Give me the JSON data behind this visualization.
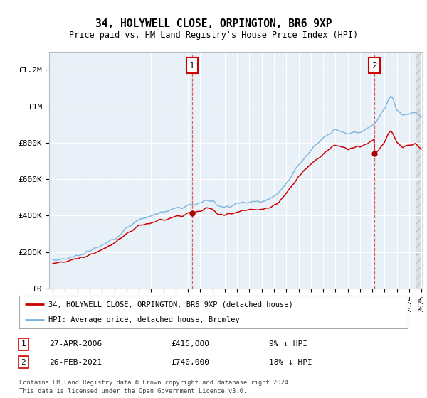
{
  "title": "34, HOLYWELL CLOSE, ORPINGTON, BR6 9XP",
  "subtitle": "Price paid vs. HM Land Registry's House Price Index (HPI)",
  "background_color": "#e8f0f8",
  "plot_bg_color": "#e8f0f8",
  "hpi_color": "#7ab3d9",
  "price_color": "#cc0000",
  "marker_color": "#aa0000",
  "transaction1_x": 2006.32,
  "transaction1_y": 415000,
  "transaction2_x": 2021.15,
  "transaction2_y": 740000,
  "legend_label1": "34, HOLYWELL CLOSE, ORPINGTON, BR6 9XP (detached house)",
  "legend_label2": "HPI: Average price, detached house, Bromley",
  "annotation1_date": "27-APR-2006",
  "annotation1_price": "£415,000",
  "annotation1_hpi": "9% ↓ HPI",
  "annotation2_date": "26-FEB-2021",
  "annotation2_price": "£740,000",
  "annotation2_hpi": "18% ↓ HPI",
  "footer": "Contains HM Land Registry data © Crown copyright and database right 2024.\nThis data is licensed under the Open Government Licence v3.0.",
  "xmin": 1995,
  "xmax": 2025,
  "ylim": [
    0,
    1300000
  ],
  "yticks": [
    0,
    200000,
    400000,
    600000,
    800000,
    1000000,
    1200000
  ],
  "ytick_labels": [
    "£0",
    "£200K",
    "£400K",
    "£600K",
    "£800K",
    "£1M",
    "£1.2M"
  ]
}
